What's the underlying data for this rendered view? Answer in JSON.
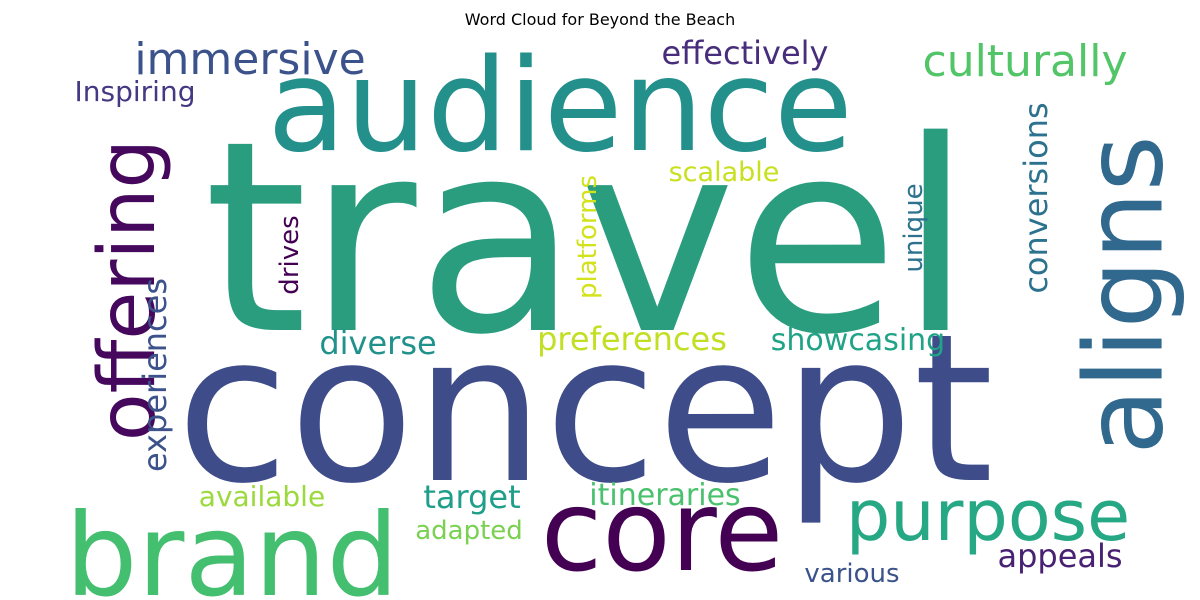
{
  "chart_data": {
    "type": "wordcloud",
    "title": "Word Cloud for Beyond the Beach",
    "colormap": "viridis",
    "background": "#ffffff",
    "words": [
      {
        "text": "travel",
        "weight": 1.0,
        "color": "#2a9d7f"
      },
      {
        "text": "concept",
        "weight": 0.95,
        "color": "#3e4c8a"
      },
      {
        "text": "audience",
        "weight": 0.62,
        "color": "#23908c"
      },
      {
        "text": "aligns",
        "weight": 0.55,
        "color": "#31688e"
      },
      {
        "text": "brand",
        "weight": 0.52,
        "color": "#44bf70"
      },
      {
        "text": "core",
        "weight": 0.5,
        "color": "#440154"
      },
      {
        "text": "offering",
        "weight": 0.45,
        "color": "#46085c"
      },
      {
        "text": "purpose",
        "weight": 0.38,
        "color": "#26a885"
      },
      {
        "text": "culturally",
        "weight": 0.28,
        "color": "#52c569"
      },
      {
        "text": "immersive",
        "weight": 0.26,
        "color": "#3b528b"
      },
      {
        "text": "conversions",
        "weight": 0.25,
        "color": "#2c728e"
      },
      {
        "text": "experiences",
        "weight": 0.25,
        "color": "#3b528b"
      },
      {
        "text": "effectively",
        "weight": 0.25,
        "color": "#472d7b"
      },
      {
        "text": "appeals",
        "weight": 0.25,
        "color": "#482173"
      },
      {
        "text": "diverse",
        "weight": 0.24,
        "color": "#21918c"
      },
      {
        "text": "preferences",
        "weight": 0.24,
        "color": "#c2df23"
      },
      {
        "text": "showcasing",
        "weight": 0.23,
        "color": "#20a386"
      },
      {
        "text": "target",
        "weight": 0.22,
        "color": "#1f9e89"
      },
      {
        "text": "itineraries",
        "weight": 0.21,
        "color": "#4ac16d"
      },
      {
        "text": "available",
        "weight": 0.2,
        "color": "#9bd93c"
      },
      {
        "text": "platforms",
        "weight": 0.2,
        "color": "#d2e21b"
      },
      {
        "text": "unique",
        "weight": 0.2,
        "color": "#2c728e"
      },
      {
        "text": "drives",
        "weight": 0.2,
        "color": "#440154"
      },
      {
        "text": "various",
        "weight": 0.19,
        "color": "#3b528b"
      },
      {
        "text": "scalable",
        "weight": 0.19,
        "color": "#c8e020"
      },
      {
        "text": "adapted",
        "weight": 0.18,
        "color": "#7ad151"
      },
      {
        "text": "Inspiring",
        "weight": 0.18,
        "color": "#443983"
      }
    ]
  }
}
